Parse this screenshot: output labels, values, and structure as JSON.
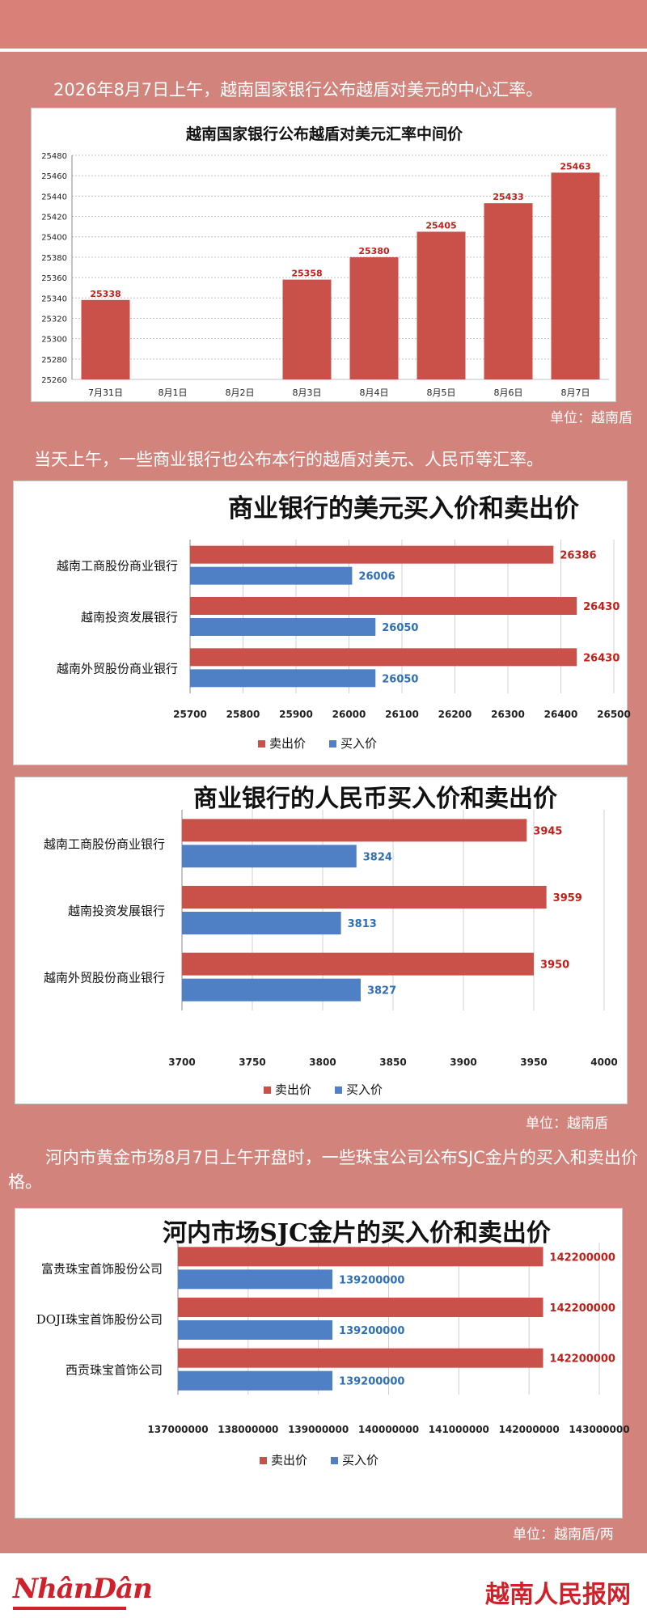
{
  "colors": {
    "sell": "#c9514a",
    "buy": "#4f7fc4",
    "sell_label": "#c0201a",
    "buy_label": "#2f6fb6",
    "background": "#d2847c"
  },
  "intro1": "2026年8月7日上午，越南国家银行公布越盾对美元的中心汇率。",
  "unit1": "单位：越南盾",
  "intro2": "当天上午，一些商业银行也公布本行的越盾对美元、人民币等汇率。",
  "unit2": "单位：越南盾",
  "intro3": "河内市黄金市场8月7日上午开盘时，一些珠宝公司公布SJC金片的买入和卖出价格。",
  "unit3": "单位：越南盾/两",
  "footer": {
    "logo_left": "NhânDân",
    "logo_right": "越南人民报网"
  },
  "chart_data": [
    {
      "type": "bar",
      "title": "越南国家银行公布越盾对美元汇率中间价",
      "categories": [
        "7月31日",
        "8月1日",
        "8月2日",
        "8月3日",
        "8月4日",
        "8月5日",
        "8月6日",
        "8月7日"
      ],
      "values": [
        25338,
        null,
        null,
        25358,
        25380,
        25405,
        25433,
        25463
      ],
      "value_labels": [
        "25338",
        "",
        "",
        "25358",
        "25380",
        "25405",
        "25433",
        "25463"
      ],
      "ylim": [
        25260,
        25480
      ],
      "yticks": [
        25260,
        25280,
        25300,
        25320,
        25340,
        25360,
        25380,
        25400,
        25420,
        25440,
        25460,
        25480
      ],
      "grid": true
    },
    {
      "type": "bar",
      "orientation": "horizontal",
      "title": "商业银行的美元买入价和卖出价",
      "categories": [
        "越南工商股份商业银行",
        "越南投资发展银行",
        "越南外贸股份商业银行"
      ],
      "series": [
        {
          "name": "卖出价",
          "values": [
            26386,
            26430,
            26430
          ]
        },
        {
          "name": "买入价",
          "values": [
            26006,
            26050,
            26050
          ]
        }
      ],
      "xlim": [
        25700,
        26500
      ],
      "xticks": [
        25700,
        25800,
        25900,
        26000,
        26100,
        26200,
        26300,
        26400,
        26500
      ],
      "legend": "bottom",
      "grid": true
    },
    {
      "type": "bar",
      "orientation": "horizontal",
      "title": "商业银行的人民币买入价和卖出价",
      "categories": [
        "越南工商股份商业银行",
        "越南投资发展银行",
        "越南外贸股份商业银行"
      ],
      "series": [
        {
          "name": "卖出价",
          "values": [
            3945,
            3959,
            3950
          ]
        },
        {
          "name": "买入价",
          "values": [
            3824,
            3813,
            3827
          ]
        }
      ],
      "xlim": [
        3700,
        4000
      ],
      "xticks": [
        3700,
        3750,
        3800,
        3850,
        3900,
        3950,
        4000
      ],
      "legend": "bottom",
      "grid": true
    },
    {
      "type": "bar",
      "orientation": "horizontal",
      "title": "河内市场SJC金片的买入价和卖出价",
      "categories": [
        "富贵珠宝首饰股份公司",
        "DOJI珠宝首饰股份公司",
        "西贡珠宝首饰公司"
      ],
      "series": [
        {
          "name": "卖出价",
          "values": [
            142200000,
            142200000,
            142200000
          ]
        },
        {
          "name": "买入价",
          "values": [
            139200000,
            139200000,
            139200000
          ]
        }
      ],
      "xlim": [
        137000000,
        143000000
      ],
      "xticks": [
        137000000,
        138000000,
        139000000,
        140000000,
        141000000,
        142000000,
        143000000
      ],
      "legend": "bottom",
      "grid": true
    }
  ]
}
